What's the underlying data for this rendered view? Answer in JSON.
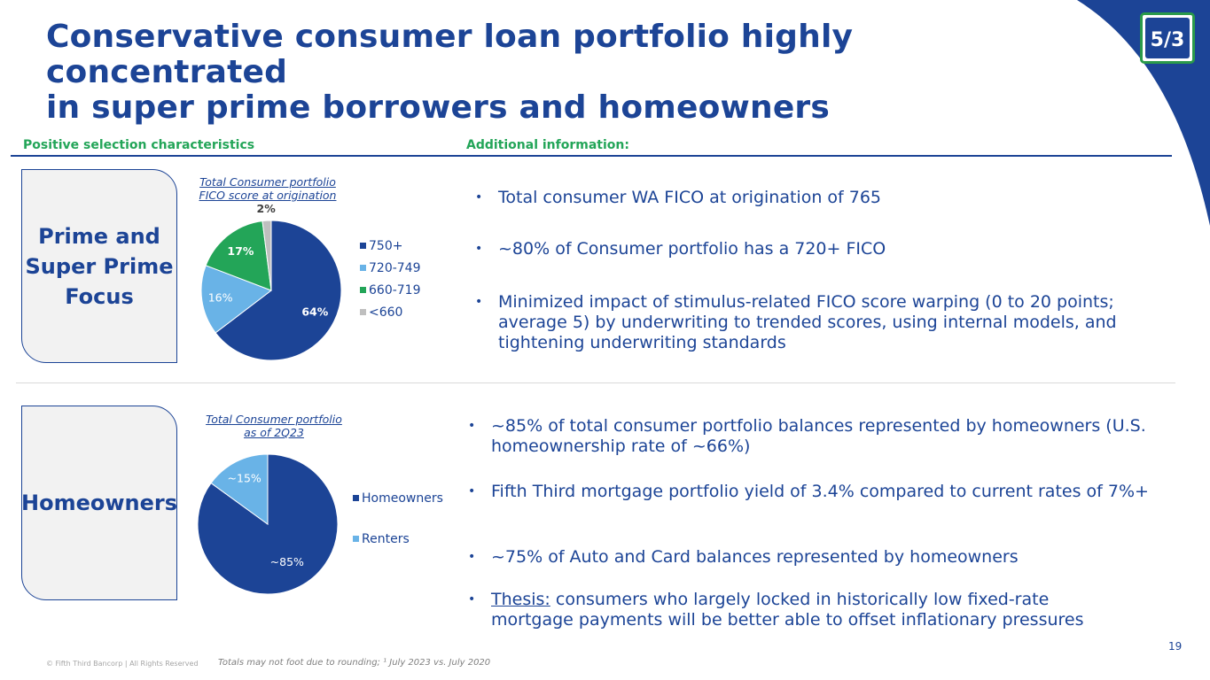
{
  "title": {
    "line1": "Conservative consumer loan portfolio highly concentrated",
    "line2": "in super prime borrowers and homeowners"
  },
  "headers": {
    "left": "Positive selection characteristics",
    "right": "Additional information:"
  },
  "section1": {
    "box_line1": "Prime and",
    "box_line2": "Super Prime",
    "box_line3": "Focus",
    "chart_title_line1": "Total Consumer portfolio",
    "chart_title_line2": "FICO score at origination",
    "bullets": [
      "Total consumer WA FICO at origination of 765",
      "~80% of Consumer portfolio has a 720+ FICO",
      "Minimized impact of stimulus-related FICO score warping (0 to 20 points; average 5) by underwriting to trended scores, using internal models, and tightening underwriting standards"
    ]
  },
  "section2": {
    "box_label": "Homeowners",
    "chart_title_line1": "Total Consumer portfolio",
    "chart_title_line2": "as of 2Q23",
    "bullets": [
      "~85% of total consumer portfolio balances represented by homeowners (U.S. homeownership rate of ~66%)",
      "Fifth Third mortgage portfolio yield of 3.4% compared to current rates of 7%+",
      "~75% of Auto and Card balances represented by homeowners"
    ],
    "thesis_label": "Thesis:",
    "thesis_text": " consumers who largely locked in historically low fixed-rate mortgage payments will be better able to offset inflationary pressures"
  },
  "chart_data": [
    {
      "type": "pie",
      "title": "Total Consumer portfolio FICO score at origination",
      "categories": [
        "750+",
        "720-749",
        "660-719",
        "<660"
      ],
      "values": [
        64,
        16,
        17,
        2
      ],
      "labels": [
        "64%",
        "16%",
        "17%",
        "2%"
      ],
      "colors": [
        "#1c4496",
        "#69b3e7",
        "#23a558",
        "#bfbfbf"
      ],
      "legend": "right"
    },
    {
      "type": "pie",
      "title": "Total Consumer portfolio as of 2Q23",
      "categories": [
        "Homeowners",
        "Renters"
      ],
      "values": [
        85,
        15
      ],
      "labels": [
        "~85%",
        "~15%"
      ],
      "colors": [
        "#1c4496",
        "#69b3e7"
      ],
      "legend": "right"
    }
  ],
  "footer": {
    "copyright": "© Fifth Third Bancorp | All Rights Reserved",
    "note": "Totals may not foot due to rounding; ¹ July 2023 vs. July 2020",
    "page": "19"
  },
  "logo": {
    "text": "5/3"
  }
}
